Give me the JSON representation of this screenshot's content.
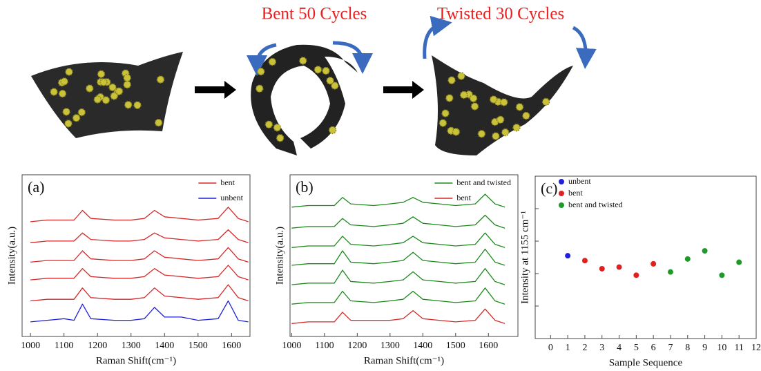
{
  "illustration": {
    "labels": [
      "Bent 50 Cycles",
      "Twisted 30 Cycles"
    ]
  },
  "chart_data": [
    {
      "type": "line",
      "label": "(a)",
      "xlabel": "Raman Shift(cm⁻¹)",
      "ylabel": "Intensity(a.u.)",
      "x": [
        1000,
        1050,
        1100,
        1130,
        1155,
        1180,
        1250,
        1300,
        1340,
        1370,
        1400,
        1450,
        1500,
        1560,
        1590,
        1620,
        1650
      ],
      "xlim": [
        975,
        1655
      ],
      "ylim": [
        0,
        100
      ],
      "xticks": [
        1000,
        1100,
        1200,
        1300,
        1400,
        1500,
        1600
      ],
      "legend": "upper right",
      "series": [
        {
          "name": "bent",
          "color": "#d62728",
          "values": [
            [
              22,
              23,
              23,
              23,
              30,
              24,
              23,
              23,
              24,
              30,
              25,
              24,
              23,
              24,
              32,
              24,
              22
            ],
            [
              35,
              36,
              36,
              36,
              42,
              37,
              36,
              36,
              37,
              42,
              38,
              37,
              36,
              37,
              44,
              37,
              35
            ],
            [
              46,
              47,
              47,
              47,
              53,
              48,
              47,
              47,
              48,
              53,
              49,
              48,
              47,
              48,
              55,
              48,
              46
            ],
            [
              58,
              59,
              59,
              59,
              64,
              60,
              59,
              59,
              60,
              64,
              61,
              60,
              59,
              60,
              66,
              60,
              58
            ],
            [
              71,
              72,
              72,
              72,
              78,
              73,
              72,
              72,
              73,
              78,
              74,
              73,
              72,
              73,
              80,
              73,
              71
            ]
          ]
        },
        {
          "name": "unbent",
          "color": "#1f1fd6",
          "values": [
            [
              9,
              10,
              11,
              10,
              20,
              11,
              10,
              10,
              11,
              18,
              12,
              12,
              10,
              11,
              22,
              10,
              9
            ]
          ]
        }
      ]
    },
    {
      "type": "line",
      "label": "(b)",
      "xlabel": "Raman Shift(cm⁻¹)",
      "ylabel": "Intensity(a.u.)",
      "x": [
        1000,
        1050,
        1100,
        1130,
        1155,
        1180,
        1250,
        1300,
        1340,
        1370,
        1400,
        1450,
        1500,
        1560,
        1590,
        1620,
        1650
      ],
      "xlim": [
        995,
        1690
      ],
      "ylim": [
        0,
        100
      ],
      "xticks": [
        1000,
        1100,
        1200,
        1300,
        1400,
        1500,
        1600
      ],
      "legend": "upper right",
      "series": [
        {
          "name": "bent and twisted",
          "color": "#1a8a1a",
          "values": [
            [
              20,
              21,
              21,
              21,
              28,
              22,
              21,
              22,
              23,
              28,
              23,
              22,
              21,
              22,
              30,
              22,
              20
            ],
            [
              32,
              33,
              33,
              33,
              41,
              34,
              33,
              34,
              35,
              40,
              35,
              34,
              33,
              34,
              42,
              34,
              32
            ],
            [
              44,
              45,
              45,
              45,
              53,
              46,
              45,
              46,
              47,
              52,
              47,
              46,
              45,
              46,
              54,
              46,
              44
            ],
            [
              55,
              56,
              56,
              56,
              62,
              57,
              56,
              57,
              58,
              62,
              58,
              57,
              56,
              57,
              64,
              57,
              55
            ],
            [
              67,
              68,
              68,
              68,
              73,
              69,
              68,
              69,
              70,
              74,
              70,
              69,
              68,
              69,
              75,
              69,
              67
            ],
            [
              80,
              81,
              81,
              81,
              86,
              82,
              81,
              82,
              83,
              86,
              83,
              82,
              81,
              82,
              88,
              82,
              80
            ]
          ]
        },
        {
          "name": "bent",
          "color": "#d62728",
          "values": [
            [
              8,
              9,
              9,
              9,
              15,
              10,
              10,
              10,
              11,
              16,
              11,
              10,
              9,
              10,
              17,
              10,
              8
            ]
          ]
        }
      ]
    },
    {
      "type": "scatter",
      "label": "(c)",
      "xlabel": "Sample Sequence",
      "ylabel": "Intensity at 1155 cm⁻¹",
      "xlim": [
        -0.9,
        12
      ],
      "ylim": [
        0,
        100
      ],
      "xticks": [
        0,
        1,
        2,
        3,
        4,
        5,
        6,
        7,
        8,
        9,
        10,
        11,
        12
      ],
      "legend": "upper left",
      "series": [
        {
          "name": "unbent",
          "color": "#1f1fe0",
          "x": [
            1
          ],
          "values": [
            51
          ]
        },
        {
          "name": "bent",
          "color": "#e01f1f",
          "x": [
            2,
            3,
            4,
            5,
            6
          ],
          "values": [
            48,
            43,
            44,
            39,
            46
          ]
        },
        {
          "name": "bent and twisted",
          "color": "#1f9a2a",
          "x": [
            7,
            8,
            9,
            10,
            11
          ],
          "values": [
            41,
            49,
            54,
            39,
            47
          ]
        }
      ]
    }
  ]
}
